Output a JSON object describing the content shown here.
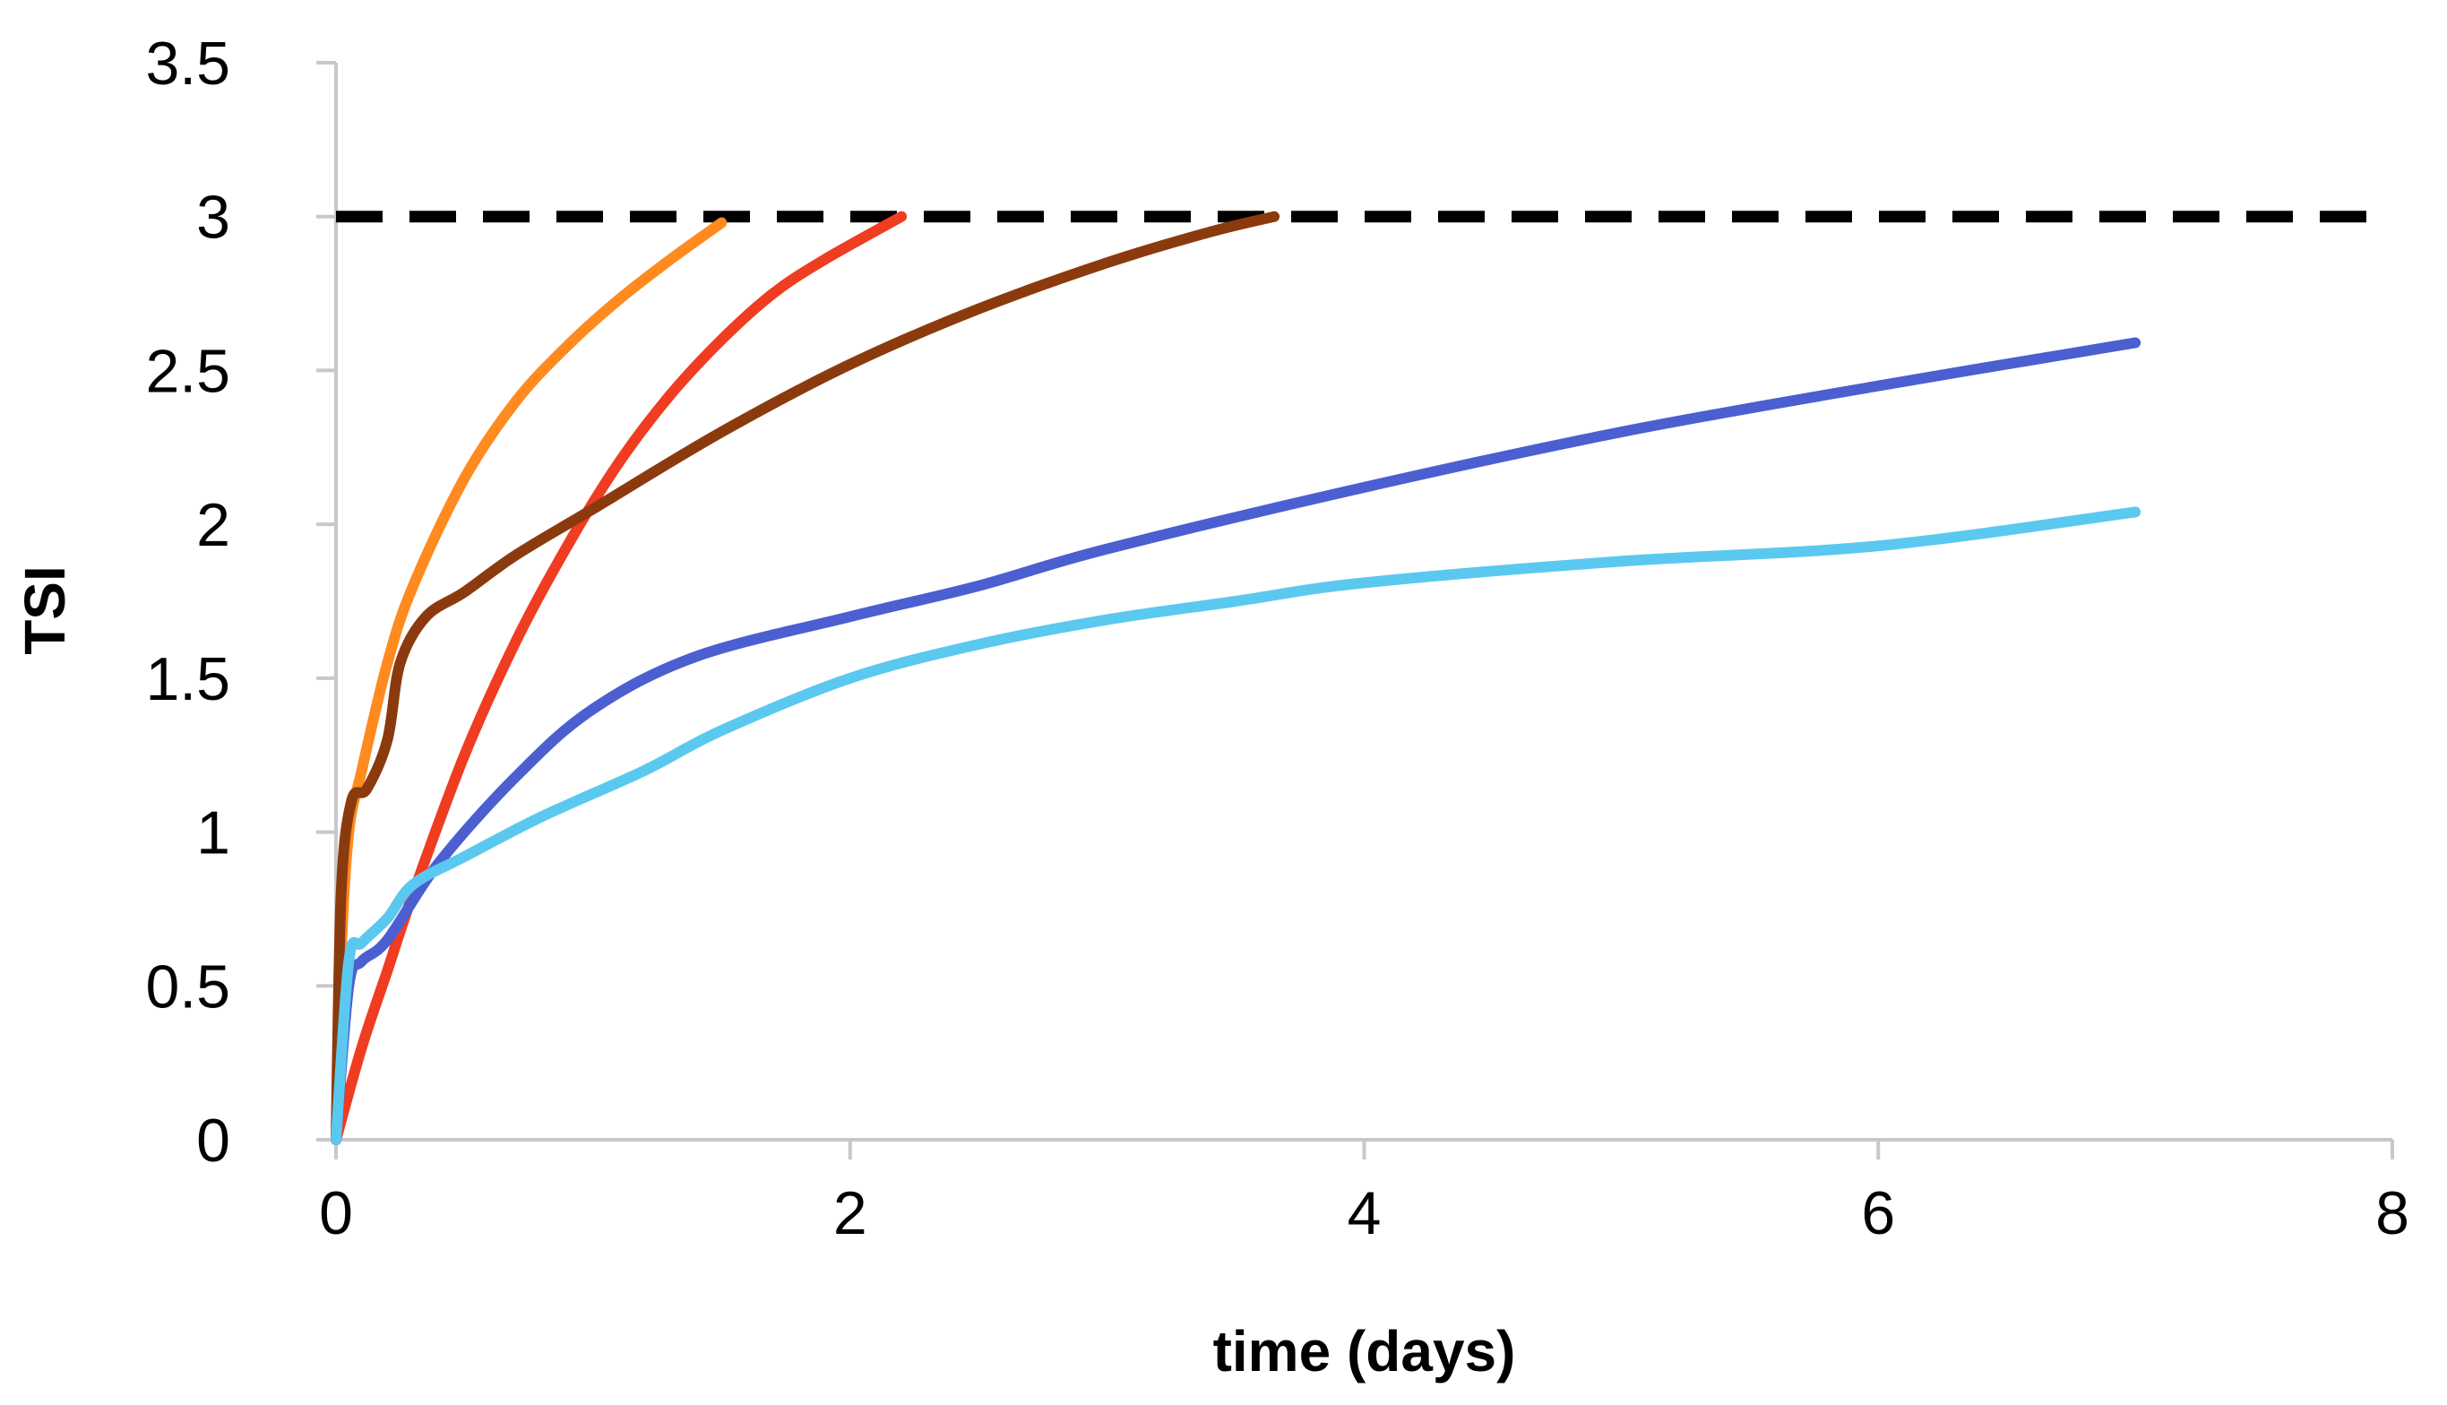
{
  "chart_data": {
    "type": "line",
    "title": "",
    "xlabel": "time (days)",
    "ylabel": "TSI",
    "xlim": [
      0,
      8
    ],
    "ylim": [
      0,
      3.5
    ],
    "xticks": [
      0,
      2,
      4,
      6,
      8
    ],
    "yticks": [
      0,
      0.5,
      1,
      1.5,
      2,
      2.5,
      3,
      3.5
    ],
    "xtick_labels": [
      "0",
      "2",
      "4",
      "6",
      "8"
    ],
    "ytick_labels": [
      "0",
      "0.5",
      "1",
      "1.5",
      "2",
      "2.5",
      "3",
      "3.5"
    ],
    "grid": false,
    "legend": "none",
    "threshold": {
      "y": 3,
      "color": "#000000",
      "style": "dashed"
    },
    "series": [
      {
        "name": "orange",
        "color": "#FF8A1F",
        "points": [
          [
            0,
            0
          ],
          [
            0.02,
            0.6
          ],
          [
            0.05,
            1.0
          ],
          [
            0.1,
            1.2
          ],
          [
            0.2,
            1.55
          ],
          [
            0.3,
            1.8
          ],
          [
            0.5,
            2.15
          ],
          [
            0.7,
            2.4
          ],
          [
            0.9,
            2.58
          ],
          [
            1.1,
            2.73
          ],
          [
            1.3,
            2.86
          ],
          [
            1.5,
            2.98
          ]
        ]
      },
      {
        "name": "red",
        "color": "#F03C21",
        "points": [
          [
            0,
            0
          ],
          [
            0.1,
            0.3
          ],
          [
            0.2,
            0.55
          ],
          [
            0.3,
            0.8
          ],
          [
            0.5,
            1.25
          ],
          [
            0.7,
            1.62
          ],
          [
            0.9,
            1.93
          ],
          [
            1.1,
            2.2
          ],
          [
            1.3,
            2.42
          ],
          [
            1.5,
            2.6
          ],
          [
            1.7,
            2.75
          ],
          [
            1.9,
            2.86
          ],
          [
            2.2,
            3.0
          ]
        ]
      },
      {
        "name": "brown",
        "color": "#8B3A0E",
        "points": [
          [
            0,
            0
          ],
          [
            0.02,
            0.8
          ],
          [
            0.06,
            1.1
          ],
          [
            0.12,
            1.14
          ],
          [
            0.2,
            1.3
          ],
          [
            0.25,
            1.55
          ],
          [
            0.35,
            1.7
          ],
          [
            0.5,
            1.78
          ],
          [
            0.7,
            1.9
          ],
          [
            1.0,
            2.05
          ],
          [
            1.5,
            2.3
          ],
          [
            2.0,
            2.52
          ],
          [
            2.5,
            2.7
          ],
          [
            3.0,
            2.85
          ],
          [
            3.4,
            2.95
          ],
          [
            3.65,
            3.0
          ]
        ]
      },
      {
        "name": "blue",
        "color": "#4B5FD1",
        "points": [
          [
            0,
            0
          ],
          [
            0.05,
            0.5
          ],
          [
            0.1,
            0.58
          ],
          [
            0.2,
            0.65
          ],
          [
            0.4,
            0.9
          ],
          [
            0.7,
            1.18
          ],
          [
            1.0,
            1.4
          ],
          [
            1.4,
            1.57
          ],
          [
            2.0,
            1.7
          ],
          [
            2.5,
            1.8
          ],
          [
            3.0,
            1.92
          ],
          [
            4.0,
            2.12
          ],
          [
            5.0,
            2.3
          ],
          [
            6.0,
            2.45
          ],
          [
            7.0,
            2.59
          ]
        ]
      },
      {
        "name": "light-blue",
        "color": "#5BC8F0",
        "points": [
          [
            0,
            0
          ],
          [
            0.05,
            0.58
          ],
          [
            0.1,
            0.64
          ],
          [
            0.2,
            0.72
          ],
          [
            0.3,
            0.83
          ],
          [
            0.5,
            0.92
          ],
          [
            0.8,
            1.05
          ],
          [
            1.2,
            1.2
          ],
          [
            1.5,
            1.33
          ],
          [
            2.0,
            1.5
          ],
          [
            2.5,
            1.61
          ],
          [
            3.0,
            1.69
          ],
          [
            3.5,
            1.75
          ],
          [
            4.0,
            1.81
          ],
          [
            5.0,
            1.88
          ],
          [
            6.0,
            1.93
          ],
          [
            7.0,
            2.04
          ]
        ]
      }
    ]
  }
}
